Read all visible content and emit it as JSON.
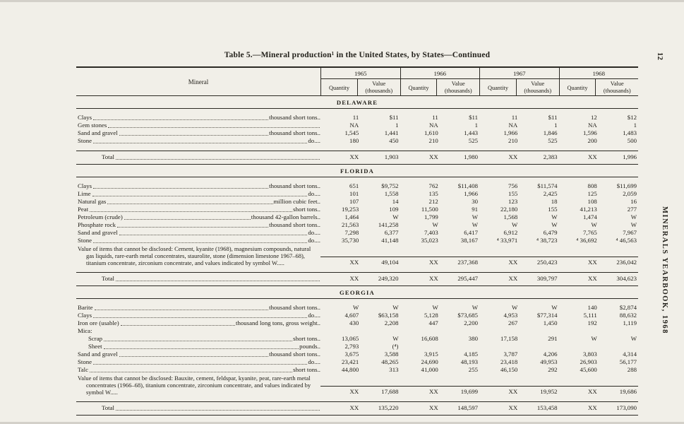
{
  "page": {
    "page_number": "12",
    "side_text": "MINERALS YEARBOOK, 1968",
    "title": "Table 5.—Mineral production¹ in the United States, by States—Continued"
  },
  "table": {
    "mineral_header": "Mineral",
    "years": [
      "1965",
      "1966",
      "1967",
      "1968"
    ],
    "quantity_label": "Quantity",
    "value_label": "Value (thousands)",
    "sections": [
      {
        "name": "DELAWARE",
        "rows": [
          {
            "label": "Clays",
            "unit": "thousand short tons..",
            "values": [
              "11",
              "$11",
              "11",
              "$11",
              "11",
              "$11",
              "12",
              "$12"
            ]
          },
          {
            "label": "Gem stones",
            "unit": "",
            "values": [
              "NA",
              "1",
              "NA",
              "1",
              "NA",
              "1",
              "NA",
              "1"
            ]
          },
          {
            "label": "Sand and gravel",
            "unit": "thousand short tons..",
            "values": [
              "1,545",
              "1,441",
              "1,610",
              "1,443",
              "1,966",
              "1,846",
              "1,596",
              "1,483"
            ]
          },
          {
            "label": "Stone",
            "unit": "do....",
            "values": [
              "180",
              "450",
              "210",
              "525",
              "210",
              "525",
              "200",
              "500"
            ]
          }
        ],
        "total": {
          "label": "Total",
          "values": [
            "XX",
            "1,903",
            "XX",
            "1,980",
            "XX",
            "2,383",
            "XX",
            "1,996"
          ]
        }
      },
      {
        "name": "FLORIDA",
        "rows": [
          {
            "label": "Clays",
            "unit": "thousand short tons..",
            "values": [
              "651",
              "$9,752",
              "762",
              "$11,408",
              "756",
              "$11,574",
              "808",
              "$11,699"
            ]
          },
          {
            "label": "Lime",
            "unit": "do....",
            "values": [
              "101",
              "1,558",
              "135",
              "1,966",
              "155",
              "2,425",
              "125",
              "2,059"
            ]
          },
          {
            "label": "Natural gas",
            "unit": "million cubic feet..",
            "values": [
              "107",
              "14",
              "212",
              "30",
              "123",
              "18",
              "108",
              "16"
            ]
          },
          {
            "label": "Peat",
            "unit": "short tons..",
            "values": [
              "19,253",
              "109",
              "11,500",
              "91",
              "22,180",
              "155",
              "41,213",
              "277"
            ]
          },
          {
            "label": "Petroleum (crude)",
            "unit": "thousand 42-gallon barrels..",
            "values": [
              "1,464",
              "W",
              "1,799",
              "W",
              "1,568",
              "W",
              "1,474",
              "W"
            ]
          },
          {
            "label": "Phosphate rock",
            "unit": "thousand short tons..",
            "values": [
              "21,563",
              "141,258",
              "W",
              "W",
              "W",
              "W",
              "W",
              "W"
            ]
          },
          {
            "label": "Sand and gravel",
            "unit": "do....",
            "values": [
              "7,298",
              "6,377",
              "7,403",
              "6,417",
              "6,912",
              "6,479",
              "7,765",
              "7,967"
            ]
          },
          {
            "label": "Stone",
            "unit": "do....",
            "values": [
              "35,730",
              "41,148",
              "35,023",
              "38,167",
              "⁴ 33,971",
              "⁴ 38,723",
              "⁴ 36,692",
              "⁴ 46,563"
            ]
          },
          {
            "type": "disclosure",
            "label": "Value of items that cannot be disclosed: Cement, kyanite (1968), magnesium compounds, natural gas liquids, rare-earth metal concentrates, staurolite, stone (dimension limestone 1967–68), titanium concentrate, zirconium concentrate, and values indicated by symbol W.....",
            "values": [
              "XX",
              "49,104",
              "XX",
              "237,368",
              "XX",
              "250,423",
              "XX",
              "236,042"
            ]
          }
        ],
        "total": {
          "label": "Total",
          "values": [
            "XX",
            "249,320",
            "XX",
            "295,447",
            "XX",
            "309,797",
            "XX",
            "304,623"
          ]
        }
      },
      {
        "name": "GEORGIA",
        "rows": [
          {
            "label": "Barite",
            "unit": "thousand short tons..",
            "values": [
              "W",
              "W",
              "W",
              "W",
              "W",
              "W",
              "140",
              "$2,874"
            ]
          },
          {
            "label": "Clays",
            "unit": "do....",
            "values": [
              "4,607",
              "$63,158",
              "5,128",
              "$73,685",
              "4,953",
              "$77,314",
              "5,111",
              "88,632"
            ]
          },
          {
            "label": "Iron ore (usable)",
            "unit": "thousand long tons, gross weight..",
            "values": [
              "430",
              "2,208",
              "447",
              "2,200",
              "267",
              "1,450",
              "192",
              "1,119"
            ]
          },
          {
            "type": "group",
            "label": "Mica:",
            "unit": "",
            "values": []
          },
          {
            "type": "sub",
            "label": "Scrap",
            "unit": "short tons..",
            "values": [
              "13,065",
              "W",
              "16,608",
              "380",
              "17,158",
              "291",
              "W",
              "W"
            ]
          },
          {
            "type": "sub",
            "label": "Sheet",
            "unit": "pounds..",
            "values": [
              "2,793",
              "(⁴)",
              "",
              "",
              "",
              "",
              "",
              ""
            ]
          },
          {
            "label": "Sand and gravel",
            "unit": "thousand short tons..",
            "values": [
              "3,675",
              "3,588",
              "3,915",
              "4,185",
              "3,787",
              "4,206",
              "3,803",
              "4,314"
            ]
          },
          {
            "label": "Stone",
            "unit": "do....",
            "values": [
              "23,421",
              "48,265",
              "24,690",
              "48,193",
              "23,418",
              "49,953",
              "26,903",
              "56,177"
            ]
          },
          {
            "label": "Talc",
            "unit": "short tons..",
            "values": [
              "44,800",
              "313",
              "41,000",
              "255",
              "46,150",
              "292",
              "45,600",
              "288"
            ]
          },
          {
            "type": "disclosure",
            "label": "Value of items that cannot be disclosed: Bauxite, cement, feldspar, kyanite, peat, rare-earth metal concentrates (1966–68), titanium concentrate, zirconium concentrate, and values indicated by symbol W.....",
            "values": [
              "XX",
              "17,688",
              "XX",
              "19,699",
              "XX",
              "19,952",
              "XX",
              "19,686"
            ]
          }
        ],
        "total": {
          "label": "Total",
          "values": [
            "XX",
            "135,220",
            "XX",
            "148,597",
            "XX",
            "153,458",
            "XX",
            "173,090"
          ]
        }
      }
    ]
  }
}
